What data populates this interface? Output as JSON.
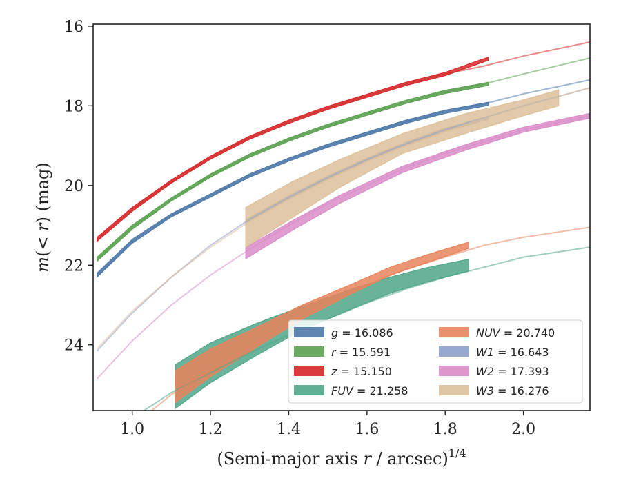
{
  "chart_data": {
    "type": "line",
    "xlabel": "(Semi-major axis r / arcsec)",
    "xlabel_parts": {
      "prefix": "(Semi-major axis ",
      "var": "r",
      "suffix": " / arcsec)",
      "exponent": "1/4"
    },
    "ylabel": "m(< r) (mag)",
    "ylabel_parts": {
      "var": "m",
      "open": "(",
      "lt": "<",
      "rvar": "r",
      "close": ")",
      "unit": " (mag)"
    },
    "xlim": [
      0.9,
      2.17
    ],
    "ylim": [
      25.65,
      15.95
    ],
    "y_inverted": true,
    "x_ticks": [
      1.0,
      1.2,
      1.4,
      1.6,
      1.8,
      2.0
    ],
    "x_tick_labels": [
      "1.0",
      "1.2",
      "1.4",
      "1.6",
      "1.8",
      "2.0"
    ],
    "y_ticks": [
      16,
      18,
      20,
      22,
      24
    ],
    "y_tick_labels": [
      "16",
      "18",
      "20",
      "22",
      "24"
    ],
    "grid": false,
    "legend_position": "lower-right",
    "series": [
      {
        "name": "g = 16.086",
        "legend_var": "g",
        "legend_value": "= 16.086",
        "color": "#4c78a8",
        "model": {
          "x": [
            0.91,
            1.0,
            1.1,
            1.2,
            1.3,
            1.4,
            1.5,
            1.6,
            1.7,
            1.8,
            1.9,
            2.0,
            2.17
          ],
          "y": [
            22.25,
            21.4,
            20.75,
            20.25,
            19.75,
            19.35,
            19.0,
            18.7,
            18.4,
            18.15,
            17.95,
            17.7,
            17.35
          ]
        },
        "data": {
          "x": [
            0.91,
            1.0,
            1.1,
            1.2,
            1.3,
            1.4,
            1.5,
            1.6,
            1.7,
            1.8,
            1.91
          ],
          "y": [
            22.25,
            21.4,
            20.75,
            20.25,
            19.75,
            19.35,
            19.0,
            18.7,
            18.4,
            18.15,
            17.95
          ],
          "err": [
            0.05,
            0.05,
            0.04,
            0.04,
            0.04,
            0.04,
            0.04,
            0.04,
            0.04,
            0.04,
            0.04
          ]
        }
      },
      {
        "name": "r = 15.591",
        "legend_var": "r",
        "legend_value": "= 15.591",
        "color": "#59a14f",
        "model": {
          "x": [
            0.91,
            1.0,
            1.1,
            1.2,
            1.3,
            1.4,
            1.5,
            1.6,
            1.7,
            1.8,
            1.9,
            2.0,
            2.17
          ],
          "y": [
            21.85,
            21.05,
            20.35,
            19.75,
            19.25,
            18.85,
            18.5,
            18.2,
            17.9,
            17.65,
            17.45,
            17.2,
            16.8
          ]
        },
        "data": {
          "x": [
            0.91,
            1.0,
            1.1,
            1.2,
            1.3,
            1.4,
            1.5,
            1.6,
            1.7,
            1.8,
            1.91
          ],
          "y": [
            21.85,
            21.05,
            20.35,
            19.75,
            19.25,
            18.85,
            18.5,
            18.2,
            17.9,
            17.65,
            17.45
          ],
          "err": [
            0.05,
            0.05,
            0.04,
            0.04,
            0.04,
            0.04,
            0.04,
            0.04,
            0.04,
            0.04,
            0.04
          ]
        }
      },
      {
        "name": "z = 15.150",
        "legend_var": "z",
        "legend_value": "= 15.150",
        "color": "#d62728",
        "model": {
          "x": [
            0.91,
            1.0,
            1.1,
            1.2,
            1.3,
            1.4,
            1.5,
            1.6,
            1.7,
            1.8,
            1.9,
            2.0,
            2.17
          ],
          "y": [
            21.35,
            20.6,
            19.9,
            19.3,
            18.8,
            18.4,
            18.05,
            17.75,
            17.45,
            17.2,
            17.0,
            16.75,
            16.4
          ]
        },
        "data": {
          "x": [
            0.91,
            1.0,
            1.1,
            1.2,
            1.3,
            1.4,
            1.5,
            1.6,
            1.7,
            1.8,
            1.91
          ],
          "y": [
            21.35,
            20.6,
            19.9,
            19.3,
            18.8,
            18.4,
            18.05,
            17.75,
            17.45,
            17.2,
            16.82
          ],
          "err": [
            0.05,
            0.05,
            0.04,
            0.04,
            0.04,
            0.04,
            0.04,
            0.04,
            0.04,
            0.04,
            0.04
          ]
        }
      },
      {
        "name": "FUV = 21.258",
        "legend_var": "FUV",
        "legend_value": "= 21.258",
        "color": "#4fa689",
        "model": {
          "x": [
            1.03,
            1.1,
            1.2,
            1.3,
            1.4,
            1.5,
            1.6,
            1.7,
            1.8,
            1.9,
            2.0,
            2.17
          ],
          "y": [
            25.65,
            25.2,
            24.7,
            24.2,
            23.75,
            23.35,
            22.95,
            22.6,
            22.3,
            22.05,
            21.8,
            21.55
          ]
        },
        "data": {
          "x": [
            1.11,
            1.2,
            1.32,
            1.43,
            1.56,
            1.66,
            1.75,
            1.86
          ],
          "y": [
            25.05,
            24.45,
            23.85,
            23.35,
            22.85,
            22.5,
            22.25,
            22.0
          ],
          "err": [
            0.55,
            0.5,
            0.4,
            0.3,
            0.25,
            0.2,
            0.18,
            0.15
          ]
        }
      },
      {
        "name": "NUV = 20.740",
        "legend_var": "NUV",
        "legend_value": "= 20.740",
        "color": "#e8845c",
        "model": {
          "x": [
            1.05,
            1.1,
            1.2,
            1.3,
            1.4,
            1.5,
            1.6,
            1.7,
            1.8,
            1.9,
            2.0,
            2.17
          ],
          "y": [
            25.65,
            25.25,
            24.65,
            24.05,
            23.45,
            22.95,
            22.5,
            22.1,
            21.8,
            21.5,
            21.3,
            21.05
          ]
        },
        "data": {
          "x": [
            1.11,
            1.2,
            1.32,
            1.43,
            1.56,
            1.66,
            1.75,
            1.86
          ],
          "y": [
            25.05,
            24.45,
            23.8,
            23.2,
            22.6,
            22.15,
            21.85,
            21.5
          ],
          "err": [
            0.4,
            0.35,
            0.25,
            0.18,
            0.12,
            0.1,
            0.1,
            0.08
          ]
        }
      },
      {
        "name": "W1 = 16.643",
        "legend_var": "W1",
        "legend_value": "= 16.643",
        "color": "#8da0cb",
        "model": {
          "x": [
            0.91,
            1.0,
            1.1,
            1.2,
            1.3,
            1.4,
            1.5,
            1.6,
            1.7,
            1.8,
            1.9,
            2.0,
            2.17
          ],
          "y": [
            24.15,
            23.2,
            22.3,
            21.5,
            20.85,
            20.3,
            19.8,
            19.35,
            18.95,
            18.6,
            18.3,
            18.0,
            17.55
          ]
        },
        "data": {
          "x": [
            1.29,
            1.4,
            1.5,
            1.6,
            1.7,
            1.8,
            1.91
          ],
          "y": [
            20.9,
            20.3,
            19.8,
            19.35,
            18.95,
            18.6,
            18.3
          ],
          "err": [
            0.04,
            0.04,
            0.04,
            0.04,
            0.04,
            0.04,
            0.04
          ]
        }
      },
      {
        "name": "W2 = 17.393",
        "legend_var": "W2",
        "legend_value": "= 17.393",
        "color": "#d98cc8",
        "model": {
          "x": [
            0.91,
            1.0,
            1.1,
            1.2,
            1.3,
            1.4,
            1.5,
            1.6,
            1.7,
            1.8,
            1.9,
            2.0,
            2.17
          ],
          "y": [
            24.85,
            23.9,
            23.0,
            22.25,
            21.6,
            21.0,
            20.45,
            20.0,
            19.55,
            19.2,
            18.9,
            18.6,
            18.25
          ]
        },
        "data": {
          "x": [
            1.29,
            1.41,
            1.53,
            1.69,
            1.85,
            2.0,
            2.17
          ],
          "y": [
            21.7,
            21.0,
            20.35,
            19.6,
            19.05,
            18.6,
            18.25
          ],
          "err": [
            0.14,
            0.12,
            0.1,
            0.08,
            0.07,
            0.06,
            0.06
          ]
        }
      },
      {
        "name": "W3 = 16.276",
        "legend_var": "W3",
        "legend_value": "= 16.276",
        "color": "#dcc09a",
        "model": {
          "x": [
            0.91,
            1.0,
            1.1,
            1.2,
            1.3,
            1.4,
            1.5,
            1.6,
            1.7,
            1.8,
            1.9,
            2.0,
            2.17
          ],
          "y": [
            24.1,
            23.15,
            22.3,
            21.55,
            20.9,
            20.35,
            19.85,
            19.4,
            19.0,
            18.65,
            18.3,
            18.0,
            17.55
          ]
        },
        "data": {
          "x": [
            1.29,
            1.41,
            1.53,
            1.69,
            1.85,
            2.0,
            2.09
          ],
          "y": [
            21.05,
            20.35,
            19.7,
            18.95,
            18.45,
            18.05,
            17.8
          ],
          "err": [
            0.5,
            0.45,
            0.35,
            0.25,
            0.25,
            0.2,
            0.2
          ]
        }
      }
    ]
  }
}
